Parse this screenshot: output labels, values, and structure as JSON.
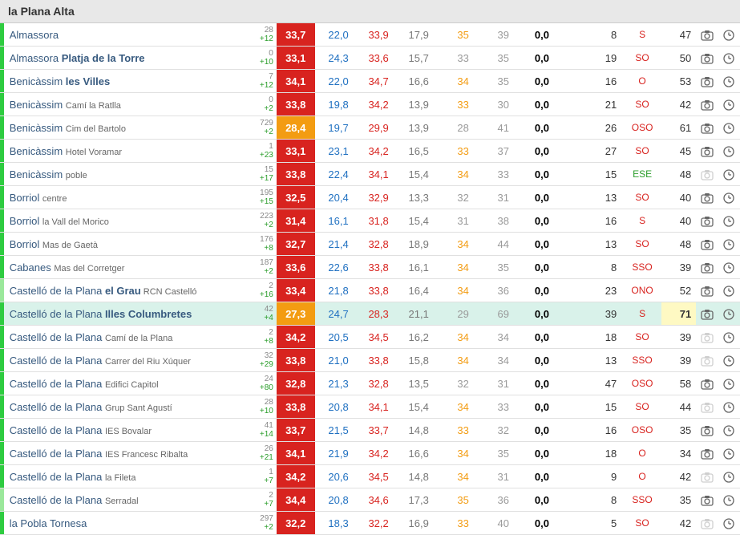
{
  "region_title": "la Plana Alta",
  "colors": {
    "bar_green": "#2ecc40",
    "bar_lightgreen": "#9be89b",
    "temp_red": "#d8231f",
    "temp_orange": "#f39c12",
    "blue": "#1f70c1",
    "orange": "#f39c12",
    "grey": "#9a9a9a",
    "black": "#000",
    "mid_grey": "#777",
    "dir_red": "#d8231f",
    "dir_green": "#2a9d2a",
    "dir_orange": "#d8231f",
    "row_hl": "#d9f2ea",
    "gust_hl": "#fef9c3",
    "icon_active": "#666",
    "icon_dim": "#cfcfcf"
  },
  "rows": [
    {
      "bar": "bar_green",
      "name_main": "Almassora",
      "name_sub": "",
      "name_bold": "",
      "elev": "28",
      "delta": "+12",
      "temp": "33,7",
      "temp_bg": "temp_red",
      "v1": "22,0",
      "v1c": "blue",
      "v2": "33,9",
      "v2c": "temp_red",
      "v3": "17,9",
      "v3c": "mid_grey",
      "v4": "35",
      "v4c": "orange",
      "v5": "39",
      "v5c": "grey",
      "v6": "0,0",
      "v6c": "black",
      "v7": "8",
      "dir": "S",
      "dirc": "dir_red",
      "gust": "47",
      "gust_hl": false,
      "cam": true,
      "clock": true,
      "hl": false
    },
    {
      "bar": "bar_green",
      "name_main": "Almassora ",
      "name_sub": "",
      "name_bold": "Platja de la Torre",
      "elev": "0",
      "delta": "+10",
      "temp": "33,1",
      "temp_bg": "temp_red",
      "v1": "24,3",
      "v1c": "blue",
      "v2": "33,6",
      "v2c": "temp_red",
      "v3": "15,7",
      "v3c": "mid_grey",
      "v4": "33",
      "v4c": "grey",
      "v5": "35",
      "v5c": "grey",
      "v6": "0,0",
      "v6c": "black",
      "v7": "19",
      "dir": "SO",
      "dirc": "dir_red",
      "gust": "50",
      "gust_hl": false,
      "cam": true,
      "clock": true,
      "hl": false
    },
    {
      "bar": "bar_green",
      "name_main": "Benicàssim ",
      "name_sub": "",
      "name_bold": "les Villes",
      "elev": "7",
      "delta": "+12",
      "temp": "34,1",
      "temp_bg": "temp_red",
      "v1": "22,0",
      "v1c": "blue",
      "v2": "34,7",
      "v2c": "temp_red",
      "v3": "16,6",
      "v3c": "mid_grey",
      "v4": "34",
      "v4c": "orange",
      "v5": "35",
      "v5c": "grey",
      "v6": "0,0",
      "v6c": "black",
      "v7": "16",
      "dir": "O",
      "dirc": "dir_red",
      "gust": "53",
      "gust_hl": false,
      "cam": true,
      "clock": true,
      "hl": false
    },
    {
      "bar": "bar_green",
      "name_main": "Benicàssim ",
      "name_sub": "Camí la Ratlla",
      "name_bold": "",
      "elev": "0",
      "delta": "+2",
      "temp": "33,8",
      "temp_bg": "temp_red",
      "v1": "19,8",
      "v1c": "blue",
      "v2": "34,2",
      "v2c": "temp_red",
      "v3": "13,9",
      "v3c": "mid_grey",
      "v4": "33",
      "v4c": "orange",
      "v5": "30",
      "v5c": "grey",
      "v6": "0,0",
      "v6c": "black",
      "v7": "21",
      "dir": "SO",
      "dirc": "dir_red",
      "gust": "42",
      "gust_hl": false,
      "cam": true,
      "clock": true,
      "hl": false
    },
    {
      "bar": "bar_green",
      "name_main": "Benicàssim ",
      "name_sub": "Cim del Bartolo",
      "name_bold": "",
      "elev": "729",
      "delta": "+2",
      "temp": "28,4",
      "temp_bg": "temp_orange",
      "v1": "19,7",
      "v1c": "blue",
      "v2": "29,9",
      "v2c": "temp_red",
      "v3": "13,9",
      "v3c": "mid_grey",
      "v4": "28",
      "v4c": "grey",
      "v5": "41",
      "v5c": "grey",
      "v6": "0,0",
      "v6c": "black",
      "v7": "26",
      "dir": "OSO",
      "dirc": "dir_red",
      "gust": "61",
      "gust_hl": false,
      "cam": true,
      "clock": true,
      "hl": false
    },
    {
      "bar": "bar_green",
      "name_main": "Benicàssim ",
      "name_sub": "Hotel Voramar",
      "name_bold": "",
      "elev": "1",
      "delta": "+23",
      "temp": "33,1",
      "temp_bg": "temp_red",
      "v1": "23,1",
      "v1c": "blue",
      "v2": "34,2",
      "v2c": "temp_red",
      "v3": "16,5",
      "v3c": "mid_grey",
      "v4": "33",
      "v4c": "orange",
      "v5": "37",
      "v5c": "grey",
      "v6": "0,0",
      "v6c": "black",
      "v7": "27",
      "dir": "SO",
      "dirc": "dir_red",
      "gust": "45",
      "gust_hl": false,
      "cam": true,
      "clock": true,
      "hl": false
    },
    {
      "bar": "bar_green",
      "name_main": "Benicàssim ",
      "name_sub": "poble",
      "name_bold": "",
      "elev": "15",
      "delta": "+17",
      "temp": "33,8",
      "temp_bg": "temp_red",
      "v1": "22,4",
      "v1c": "blue",
      "v2": "34,1",
      "v2c": "temp_red",
      "v3": "15,4",
      "v3c": "mid_grey",
      "v4": "34",
      "v4c": "orange",
      "v5": "33",
      "v5c": "grey",
      "v6": "0,0",
      "v6c": "black",
      "v7": "15",
      "dir": "ESE",
      "dirc": "dir_green",
      "gust": "48",
      "gust_hl": false,
      "cam": false,
      "clock": true,
      "hl": false
    },
    {
      "bar": "bar_green",
      "name_main": "Borriol ",
      "name_sub": "centre",
      "name_bold": "",
      "elev": "195",
      "delta": "+15",
      "temp": "32,5",
      "temp_bg": "temp_red",
      "v1": "20,4",
      "v1c": "blue",
      "v2": "32,9",
      "v2c": "temp_red",
      "v3": "13,3",
      "v3c": "mid_grey",
      "v4": "32",
      "v4c": "grey",
      "v5": "31",
      "v5c": "grey",
      "v6": "0,0",
      "v6c": "black",
      "v7": "13",
      "dir": "SO",
      "dirc": "dir_red",
      "gust": "40",
      "gust_hl": false,
      "cam": true,
      "clock": true,
      "hl": false
    },
    {
      "bar": "bar_green",
      "name_main": "Borriol ",
      "name_sub": "la Vall del Morico",
      "name_bold": "",
      "elev": "223",
      "delta": "+2",
      "temp": "31,4",
      "temp_bg": "temp_red",
      "v1": "16,1",
      "v1c": "blue",
      "v2": "31,8",
      "v2c": "temp_red",
      "v3": "15,4",
      "v3c": "mid_grey",
      "v4": "31",
      "v4c": "grey",
      "v5": "38",
      "v5c": "grey",
      "v6": "0,0",
      "v6c": "black",
      "v7": "16",
      "dir": "S",
      "dirc": "dir_red",
      "gust": "40",
      "gust_hl": false,
      "cam": true,
      "clock": true,
      "hl": false
    },
    {
      "bar": "bar_green",
      "name_main": "Borriol ",
      "name_sub": "Mas de Gaetà",
      "name_bold": "",
      "elev": "176",
      "delta": "+8",
      "temp": "32,7",
      "temp_bg": "temp_red",
      "v1": "21,4",
      "v1c": "blue",
      "v2": "32,8",
      "v2c": "temp_red",
      "v3": "18,9",
      "v3c": "mid_grey",
      "v4": "34",
      "v4c": "orange",
      "v5": "44",
      "v5c": "grey",
      "v6": "0,0",
      "v6c": "black",
      "v7": "13",
      "dir": "SO",
      "dirc": "dir_red",
      "gust": "48",
      "gust_hl": false,
      "cam": true,
      "clock": true,
      "hl": false
    },
    {
      "bar": "bar_green",
      "name_main": "Cabanes ",
      "name_sub": "Mas del Corretger",
      "name_bold": "",
      "elev": "187",
      "delta": "+2",
      "temp": "33,6",
      "temp_bg": "temp_red",
      "v1": "22,6",
      "v1c": "blue",
      "v2": "33,8",
      "v2c": "temp_red",
      "v3": "16,1",
      "v3c": "mid_grey",
      "v4": "34",
      "v4c": "orange",
      "v5": "35",
      "v5c": "grey",
      "v6": "0,0",
      "v6c": "black",
      "v7": "8",
      "dir": "SSO",
      "dirc": "dir_red",
      "gust": "39",
      "gust_hl": false,
      "cam": true,
      "clock": true,
      "hl": false
    },
    {
      "bar": "bar_lightgreen",
      "name_main": "Castelló de la Plana ",
      "name_sub": " RCN Castelló",
      "name_bold": "el Grau",
      "elev": "2",
      "delta": "+16",
      "temp": "33,4",
      "temp_bg": "temp_red",
      "v1": "21,8",
      "v1c": "blue",
      "v2": "33,8",
      "v2c": "temp_red",
      "v3": "16,4",
      "v3c": "mid_grey",
      "v4": "34",
      "v4c": "orange",
      "v5": "36",
      "v5c": "grey",
      "v6": "0,0",
      "v6c": "black",
      "v7": "23",
      "dir": "ONO",
      "dirc": "dir_red",
      "gust": "52",
      "gust_hl": false,
      "cam": true,
      "clock": true,
      "hl": false
    },
    {
      "bar": "bar_green",
      "name_main": "Castelló de la Plana ",
      "name_sub": "",
      "name_bold": "Illes Columbretes",
      "elev": "42",
      "delta": "+4",
      "temp": "27,3",
      "temp_bg": "temp_orange",
      "v1": "24,7",
      "v1c": "blue",
      "v2": "28,3",
      "v2c": "temp_red",
      "v3": "21,1",
      "v3c": "mid_grey",
      "v4": "29",
      "v4c": "grey",
      "v5": "69",
      "v5c": "grey",
      "v6": "0,0",
      "v6c": "black",
      "v7": "39",
      "dir": "S",
      "dirc": "dir_red",
      "gust": "71",
      "gust_hl": true,
      "cam": true,
      "clock": true,
      "hl": true
    },
    {
      "bar": "bar_green",
      "name_main": "Castelló de la Plana ",
      "name_sub": "Camí de la Plana",
      "name_bold": "",
      "elev": "2",
      "delta": "+8",
      "temp": "34,2",
      "temp_bg": "temp_red",
      "v1": "20,5",
      "v1c": "blue",
      "v2": "34,5",
      "v2c": "temp_red",
      "v3": "16,2",
      "v3c": "mid_grey",
      "v4": "34",
      "v4c": "orange",
      "v5": "34",
      "v5c": "grey",
      "v6": "0,0",
      "v6c": "black",
      "v7": "18",
      "dir": "SO",
      "dirc": "dir_red",
      "gust": "39",
      "gust_hl": false,
      "cam": false,
      "clock": true,
      "hl": false
    },
    {
      "bar": "bar_green",
      "name_main": "Castelló de la Plana ",
      "name_sub": "Carrer del Riu Xúquer",
      "name_bold": "",
      "elev": "32",
      "delta": "+29",
      "temp": "33,8",
      "temp_bg": "temp_red",
      "v1": "21,0",
      "v1c": "blue",
      "v2": "33,8",
      "v2c": "temp_red",
      "v3": "15,8",
      "v3c": "mid_grey",
      "v4": "34",
      "v4c": "orange",
      "v5": "34",
      "v5c": "grey",
      "v6": "0,0",
      "v6c": "black",
      "v7": "13",
      "dir": "SSO",
      "dirc": "dir_red",
      "gust": "39",
      "gust_hl": false,
      "cam": false,
      "clock": true,
      "hl": false
    },
    {
      "bar": "bar_green",
      "name_main": "Castelló de la Plana ",
      "name_sub": "Edifici Capitol",
      "name_bold": "",
      "elev": "24",
      "delta": "+80",
      "temp": "32,8",
      "temp_bg": "temp_red",
      "v1": "21,3",
      "v1c": "blue",
      "v2": "32,8",
      "v2c": "temp_red",
      "v3": "13,5",
      "v3c": "mid_grey",
      "v4": "32",
      "v4c": "grey",
      "v5": "31",
      "v5c": "grey",
      "v6": "0,0",
      "v6c": "black",
      "v7": "47",
      "dir": "OSO",
      "dirc": "dir_red",
      "gust": "58",
      "gust_hl": false,
      "cam": true,
      "clock": true,
      "hl": false
    },
    {
      "bar": "bar_green",
      "name_main": "Castelló de la Plana ",
      "name_sub": "Grup Sant Agustí",
      "name_bold": "",
      "elev": "28",
      "delta": "+10",
      "temp": "33,8",
      "temp_bg": "temp_red",
      "v1": "20,8",
      "v1c": "blue",
      "v2": "34,1",
      "v2c": "temp_red",
      "v3": "15,4",
      "v3c": "mid_grey",
      "v4": "34",
      "v4c": "orange",
      "v5": "33",
      "v5c": "grey",
      "v6": "0,0",
      "v6c": "black",
      "v7": "15",
      "dir": "SO",
      "dirc": "dir_red",
      "gust": "44",
      "gust_hl": false,
      "cam": false,
      "clock": true,
      "hl": false
    },
    {
      "bar": "bar_green",
      "name_main": "Castelló de la Plana ",
      "name_sub": "IES Bovalar",
      "name_bold": "",
      "elev": "41",
      "delta": "+14",
      "temp": "33,7",
      "temp_bg": "temp_red",
      "v1": "21,5",
      "v1c": "blue",
      "v2": "33,7",
      "v2c": "temp_red",
      "v3": "14,8",
      "v3c": "mid_grey",
      "v4": "33",
      "v4c": "orange",
      "v5": "32",
      "v5c": "grey",
      "v6": "0,0",
      "v6c": "black",
      "v7": "16",
      "dir": "OSO",
      "dirc": "dir_red",
      "gust": "35",
      "gust_hl": false,
      "cam": true,
      "clock": true,
      "hl": false
    },
    {
      "bar": "bar_green",
      "name_main": "Castelló de la Plana ",
      "name_sub": "IES Francesc Ribalta",
      "name_bold": "",
      "elev": "26",
      "delta": "+21",
      "temp": "34,1",
      "temp_bg": "temp_red",
      "v1": "21,9",
      "v1c": "blue",
      "v2": "34,2",
      "v2c": "temp_red",
      "v3": "16,6",
      "v3c": "mid_grey",
      "v4": "34",
      "v4c": "orange",
      "v5": "35",
      "v5c": "grey",
      "v6": "0,0",
      "v6c": "black",
      "v7": "18",
      "dir": "O",
      "dirc": "dir_red",
      "gust": "34",
      "gust_hl": false,
      "cam": true,
      "clock": true,
      "hl": false
    },
    {
      "bar": "bar_green",
      "name_main": "Castelló de la Plana ",
      "name_sub": "la Fileta",
      "name_bold": "",
      "elev": "1",
      "delta": "+7",
      "temp": "34,2",
      "temp_bg": "temp_red",
      "v1": "20,6",
      "v1c": "blue",
      "v2": "34,5",
      "v2c": "temp_red",
      "v3": "14,8",
      "v3c": "mid_grey",
      "v4": "34",
      "v4c": "orange",
      "v5": "31",
      "v5c": "grey",
      "v6": "0,0",
      "v6c": "black",
      "v7": "9",
      "dir": "O",
      "dirc": "dir_red",
      "gust": "42",
      "gust_hl": false,
      "cam": false,
      "clock": true,
      "hl": false
    },
    {
      "bar": "bar_lightgreen",
      "name_main": "Castelló de la Plana ",
      "name_sub": "Serradal",
      "name_bold": "",
      "elev": "2",
      "delta": "+7",
      "temp": "34,4",
      "temp_bg": "temp_red",
      "v1": "20,8",
      "v1c": "blue",
      "v2": "34,6",
      "v2c": "temp_red",
      "v3": "17,3",
      "v3c": "mid_grey",
      "v4": "35",
      "v4c": "orange",
      "v5": "36",
      "v5c": "grey",
      "v6": "0,0",
      "v6c": "black",
      "v7": "8",
      "dir": "SSO",
      "dirc": "dir_red",
      "gust": "35",
      "gust_hl": false,
      "cam": true,
      "clock": true,
      "hl": false
    },
    {
      "bar": "bar_green",
      "name_main": "la Pobla Tornesa",
      "name_sub": "",
      "name_bold": "",
      "elev": "297",
      "delta": "+2",
      "temp": "32,2",
      "temp_bg": "temp_red",
      "v1": "18,3",
      "v1c": "blue",
      "v2": "32,2",
      "v2c": "temp_red",
      "v3": "16,9",
      "v3c": "mid_grey",
      "v4": "33",
      "v4c": "orange",
      "v5": "40",
      "v5c": "grey",
      "v6": "0,0",
      "v6c": "black",
      "v7": "5",
      "dir": "SO",
      "dirc": "dir_red",
      "gust": "42",
      "gust_hl": false,
      "cam": false,
      "clock": true,
      "hl": false
    }
  ]
}
